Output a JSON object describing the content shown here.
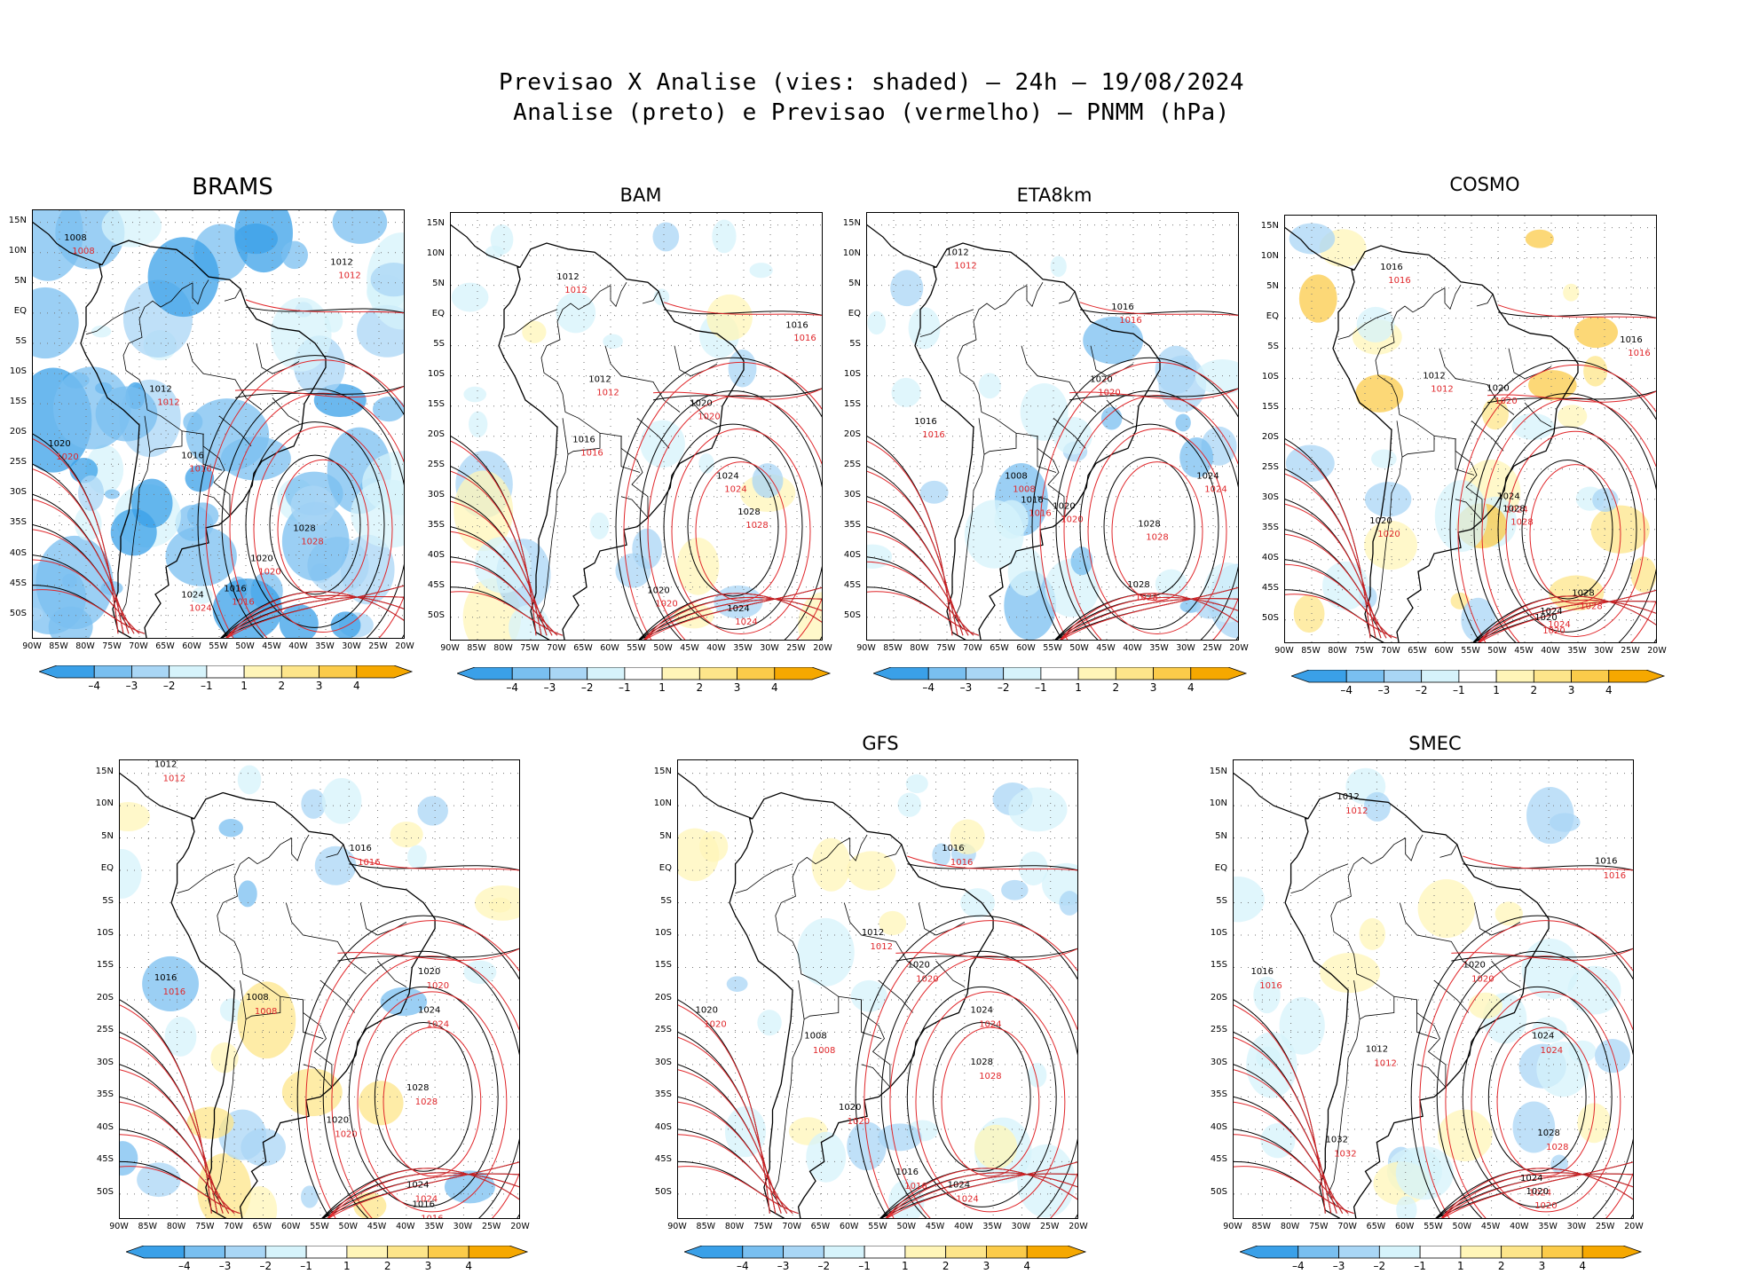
{
  "title": {
    "line1": "Previsao X Analise (vies: shaded) – 24h – 19/08/2024",
    "line2": "Analise (preto) e Previsao (vermelho) – PNMM (hPa)"
  },
  "axes": {
    "lat_labels": [
      "15N",
      "10N",
      "5N",
      "EQ",
      "5S",
      "10S",
      "15S",
      "20S",
      "25S",
      "30S",
      "35S",
      "40S",
      "45S",
      "50S"
    ],
    "lon_labels": [
      "90W",
      "85W",
      "80W",
      "75W",
      "70W",
      "65W",
      "60W",
      "55W",
      "50W",
      "45W",
      "40W",
      "35W",
      "30W",
      "25W",
      "20W"
    ]
  },
  "colorbar": {
    "labels": [
      "–4",
      "–3",
      "–2",
      "–1",
      "1",
      "2",
      "3",
      "4"
    ],
    "colors": [
      "#3aa0e8",
      "#79bff0",
      "#a9d6f5",
      "#d6f3fb",
      "#ffffff",
      "#fff5b8",
      "#fde58a",
      "#fbcb4a",
      "#f6a800"
    ]
  },
  "contour_colors": {
    "analysis": "#000000",
    "forecast": "#e0262a"
  },
  "panels": [
    {
      "id": "brams",
      "name": "BRAMS",
      "isobars": [
        {
          "value": "1008",
          "x": -82,
          "y": 12
        },
        {
          "value": "1012",
          "x": -32,
          "y": 8
        },
        {
          "value": "1016",
          "x": -60,
          "y": -24
        },
        {
          "value": "1020",
          "x": -85,
          "y": -22
        },
        {
          "value": "1024",
          "x": -60,
          "y": -47
        },
        {
          "value": "1028",
          "x": -39,
          "y": -36
        },
        {
          "value": "1020",
          "x": -47,
          "y": -41
        },
        {
          "value": "1016",
          "x": -52,
          "y": -46
        },
        {
          "value": "1012",
          "x": -66,
          "y": -13
        }
      ]
    },
    {
      "id": "bam",
      "name": "BAM",
      "isobars": [
        {
          "value": "1012",
          "x": -68,
          "y": 6
        },
        {
          "value": "1016",
          "x": -25,
          "y": -2
        },
        {
          "value": "1020",
          "x": -43,
          "y": -15
        },
        {
          "value": "1024",
          "x": -38,
          "y": -27
        },
        {
          "value": "1028",
          "x": -34,
          "y": -33
        },
        {
          "value": "1020",
          "x": -51,
          "y": -46
        },
        {
          "value": "1024",
          "x": -36,
          "y": -49
        },
        {
          "value": "1016",
          "x": -65,
          "y": -21
        },
        {
          "value": "1012",
          "x": -62,
          "y": -11
        }
      ]
    },
    {
      "id": "eta8km",
      "name": "ETA8km",
      "isobars": [
        {
          "value": "1012",
          "x": -73,
          "y": 10
        },
        {
          "value": "1016",
          "x": -42,
          "y": 1
        },
        {
          "value": "1020",
          "x": -46,
          "y": -11
        },
        {
          "value": "1024",
          "x": -26,
          "y": -27
        },
        {
          "value": "1028",
          "x": -37,
          "y": -35
        },
        {
          "value": "1016",
          "x": -59,
          "y": -31
        },
        {
          "value": "1020",
          "x": -53,
          "y": -32
        },
        {
          "value": "1028",
          "x": -39,
          "y": -45
        },
        {
          "value": "1016",
          "x": -79,
          "y": -18
        },
        {
          "value": "1008",
          "x": -62,
          "y": -27
        }
      ]
    },
    {
      "id": "cosmo",
      "name": "COSMO",
      "isobars": [
        {
          "value": "1016",
          "x": -70,
          "y": 8
        },
        {
          "value": "1012",
          "x": -62,
          "y": -10
        },
        {
          "value": "1020",
          "x": -50,
          "y": -12
        },
        {
          "value": "1024",
          "x": -48,
          "y": -30
        },
        {
          "value": "1028",
          "x": -47,
          "y": -32
        },
        {
          "value": "1016",
          "x": -25,
          "y": -4
        },
        {
          "value": "1020",
          "x": -41,
          "y": -50
        },
        {
          "value": "1024",
          "x": -40,
          "y": -49
        },
        {
          "value": "1028",
          "x": -34,
          "y": -46
        },
        {
          "value": "1020",
          "x": -72,
          "y": -34
        }
      ]
    },
    {
      "id": "cptec",
      "name": "",
      "isobars": [
        {
          "value": "1012",
          "x": -82,
          "y": 16
        },
        {
          "value": "1016",
          "x": -48,
          "y": 3
        },
        {
          "value": "1020",
          "x": -36,
          "y": -16
        },
        {
          "value": "1024",
          "x": -36,
          "y": -22
        },
        {
          "value": "1028",
          "x": -38,
          "y": -34
        },
        {
          "value": "1016",
          "x": -82,
          "y": -17
        },
        {
          "value": "1008",
          "x": -66,
          "y": -20
        },
        {
          "value": "1024",
          "x": -38,
          "y": -49
        },
        {
          "value": "1020",
          "x": -52,
          "y": -39
        },
        {
          "value": "1016",
          "x": -37,
          "y": -52
        }
      ]
    },
    {
      "id": "gfs",
      "name": "GFS",
      "isobars": [
        {
          "value": "1016",
          "x": -42,
          "y": 3
        },
        {
          "value": "1012",
          "x": -56,
          "y": -10
        },
        {
          "value": "1020",
          "x": -48,
          "y": -15
        },
        {
          "value": "1024",
          "x": -37,
          "y": -22
        },
        {
          "value": "1028",
          "x": -37,
          "y": -30
        },
        {
          "value": "1020",
          "x": -60,
          "y": -37
        },
        {
          "value": "1016",
          "x": -50,
          "y": -47
        },
        {
          "value": "1024",
          "x": -41,
          "y": -49
        },
        {
          "value": "1020",
          "x": -85,
          "y": -22
        },
        {
          "value": "1008",
          "x": -66,
          "y": -26
        }
      ]
    },
    {
      "id": "smec",
      "name": "SMEC",
      "isobars": [
        {
          "value": "1012",
          "x": -70,
          "y": 11
        },
        {
          "value": "1016",
          "x": -25,
          "y": 1
        },
        {
          "value": "1020",
          "x": -48,
          "y": -15
        },
        {
          "value": "1024",
          "x": -36,
          "y": -26
        },
        {
          "value": "1028",
          "x": -35,
          "y": -41
        },
        {
          "value": "1032",
          "x": -72,
          "y": -42
        },
        {
          "value": "1016",
          "x": -85,
          "y": -16
        },
        {
          "value": "1024",
          "x": -38,
          "y": -48
        },
        {
          "value": "1020",
          "x": -37,
          "y": -50
        },
        {
          "value": "1012",
          "x": -65,
          "y": -28
        }
      ]
    }
  ]
}
